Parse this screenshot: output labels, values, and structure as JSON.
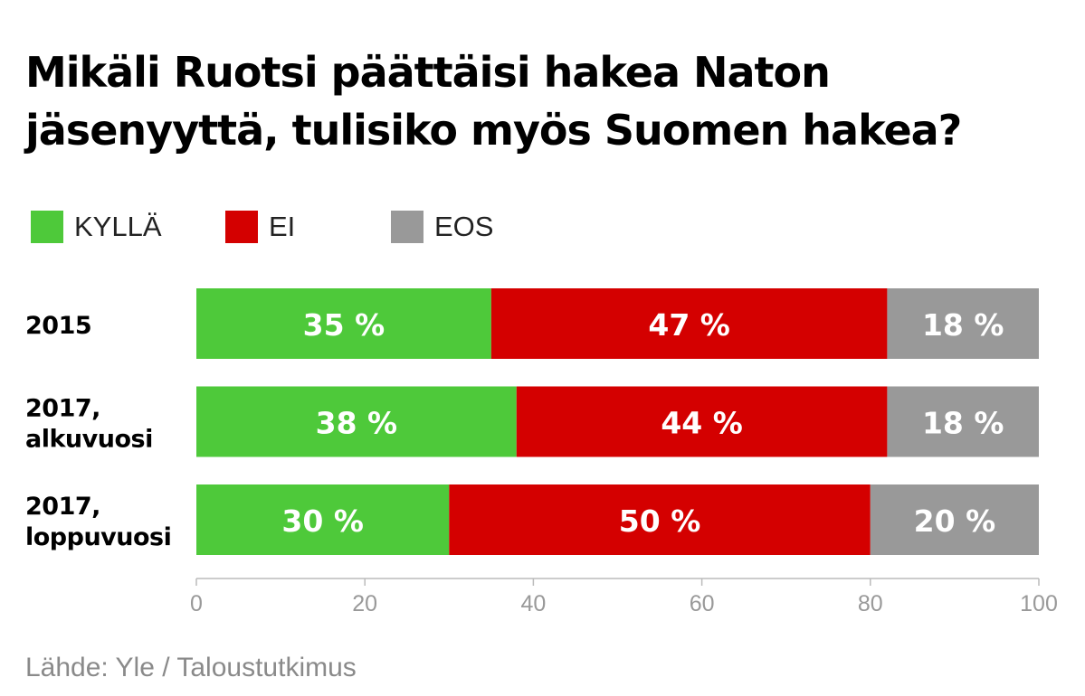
{
  "title_lines": [
    "Mikäli Ruotsi päättäisi hakea Naton",
    "jäsenyyttä, tulisiko myös Suomen hakea?"
  ],
  "source": "Lähde: Yle / Taloustutkimus",
  "colors": {
    "kylla": "#4ec93a",
    "ei": "#d40000",
    "eos": "#999999",
    "axis": "#bbbbbb",
    "tick_label": "#999999"
  },
  "chart_data": {
    "type": "bar",
    "orientation": "horizontal",
    "stacked": true,
    "categories": [
      [
        "2015"
      ],
      [
        "2017,",
        "alkuvuosi"
      ],
      [
        "2017,",
        "loppuvuosi"
      ]
    ],
    "series": [
      {
        "name": "KYLLÄ",
        "values": [
          35,
          38,
          30
        ],
        "labels": [
          "35 %",
          "38 %",
          "30 %"
        ]
      },
      {
        "name": "EI",
        "values": [
          47,
          44,
          50
        ],
        "labels": [
          "47 %",
          "44 %",
          "50 %"
        ]
      },
      {
        "name": "EOS",
        "values": [
          18,
          18,
          20
        ],
        "labels": [
          "18 %",
          "18 %",
          "20 %"
        ]
      }
    ],
    "xlim": [
      0,
      100
    ],
    "xticks": [
      "0",
      "20",
      "40",
      "60",
      "80",
      "100"
    ],
    "legend_position": "top-left",
    "grid": false
  }
}
